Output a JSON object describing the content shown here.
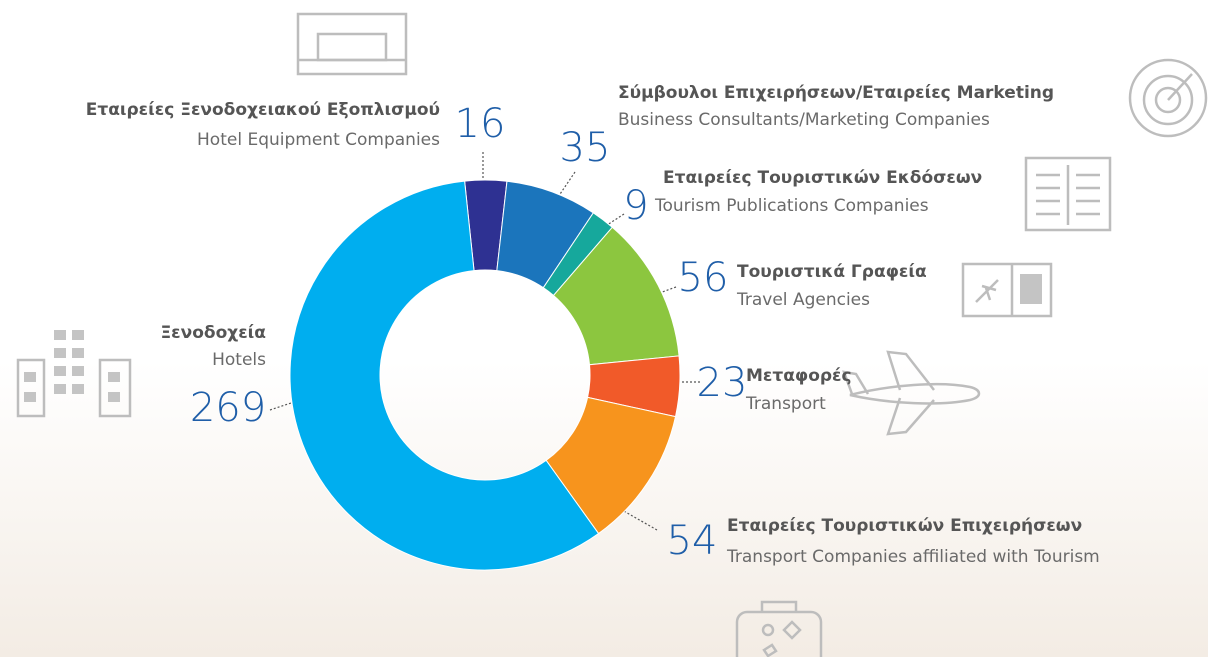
{
  "chart_data": {
    "type": "pie",
    "donut": true,
    "categories": [
      "Εταιρείες Ξενοδοχειακού Εξοπλισμού",
      "Σύμβουλοι Επιχειρήσεων/Εταιρείες Marketing",
      "Εταιρείες Τουριστικών Εκδόσεων",
      "Τουριστικά Γραφεία",
      "Μεταφορές",
      "Εταιρείες Τουριστικών Επιχειρήσεων",
      "Ξενοδοχεία"
    ],
    "categories_en": [
      "Hotel Equipment Companies",
      "Business Consultants/Marketing Companies",
      "Tourism Publications Companies",
      "Travel Agencies",
      "Transport",
      "Transport Companies affiliated with Tourism",
      "Hotels"
    ],
    "values": [
      16,
      35,
      9,
      56,
      23,
      54,
      269
    ],
    "colors": [
      "#2e3192",
      "#1b75bc",
      "#16a89c",
      "#8cc63f",
      "#f15a29",
      "#f7941d",
      "#00aeef"
    ]
  }
}
